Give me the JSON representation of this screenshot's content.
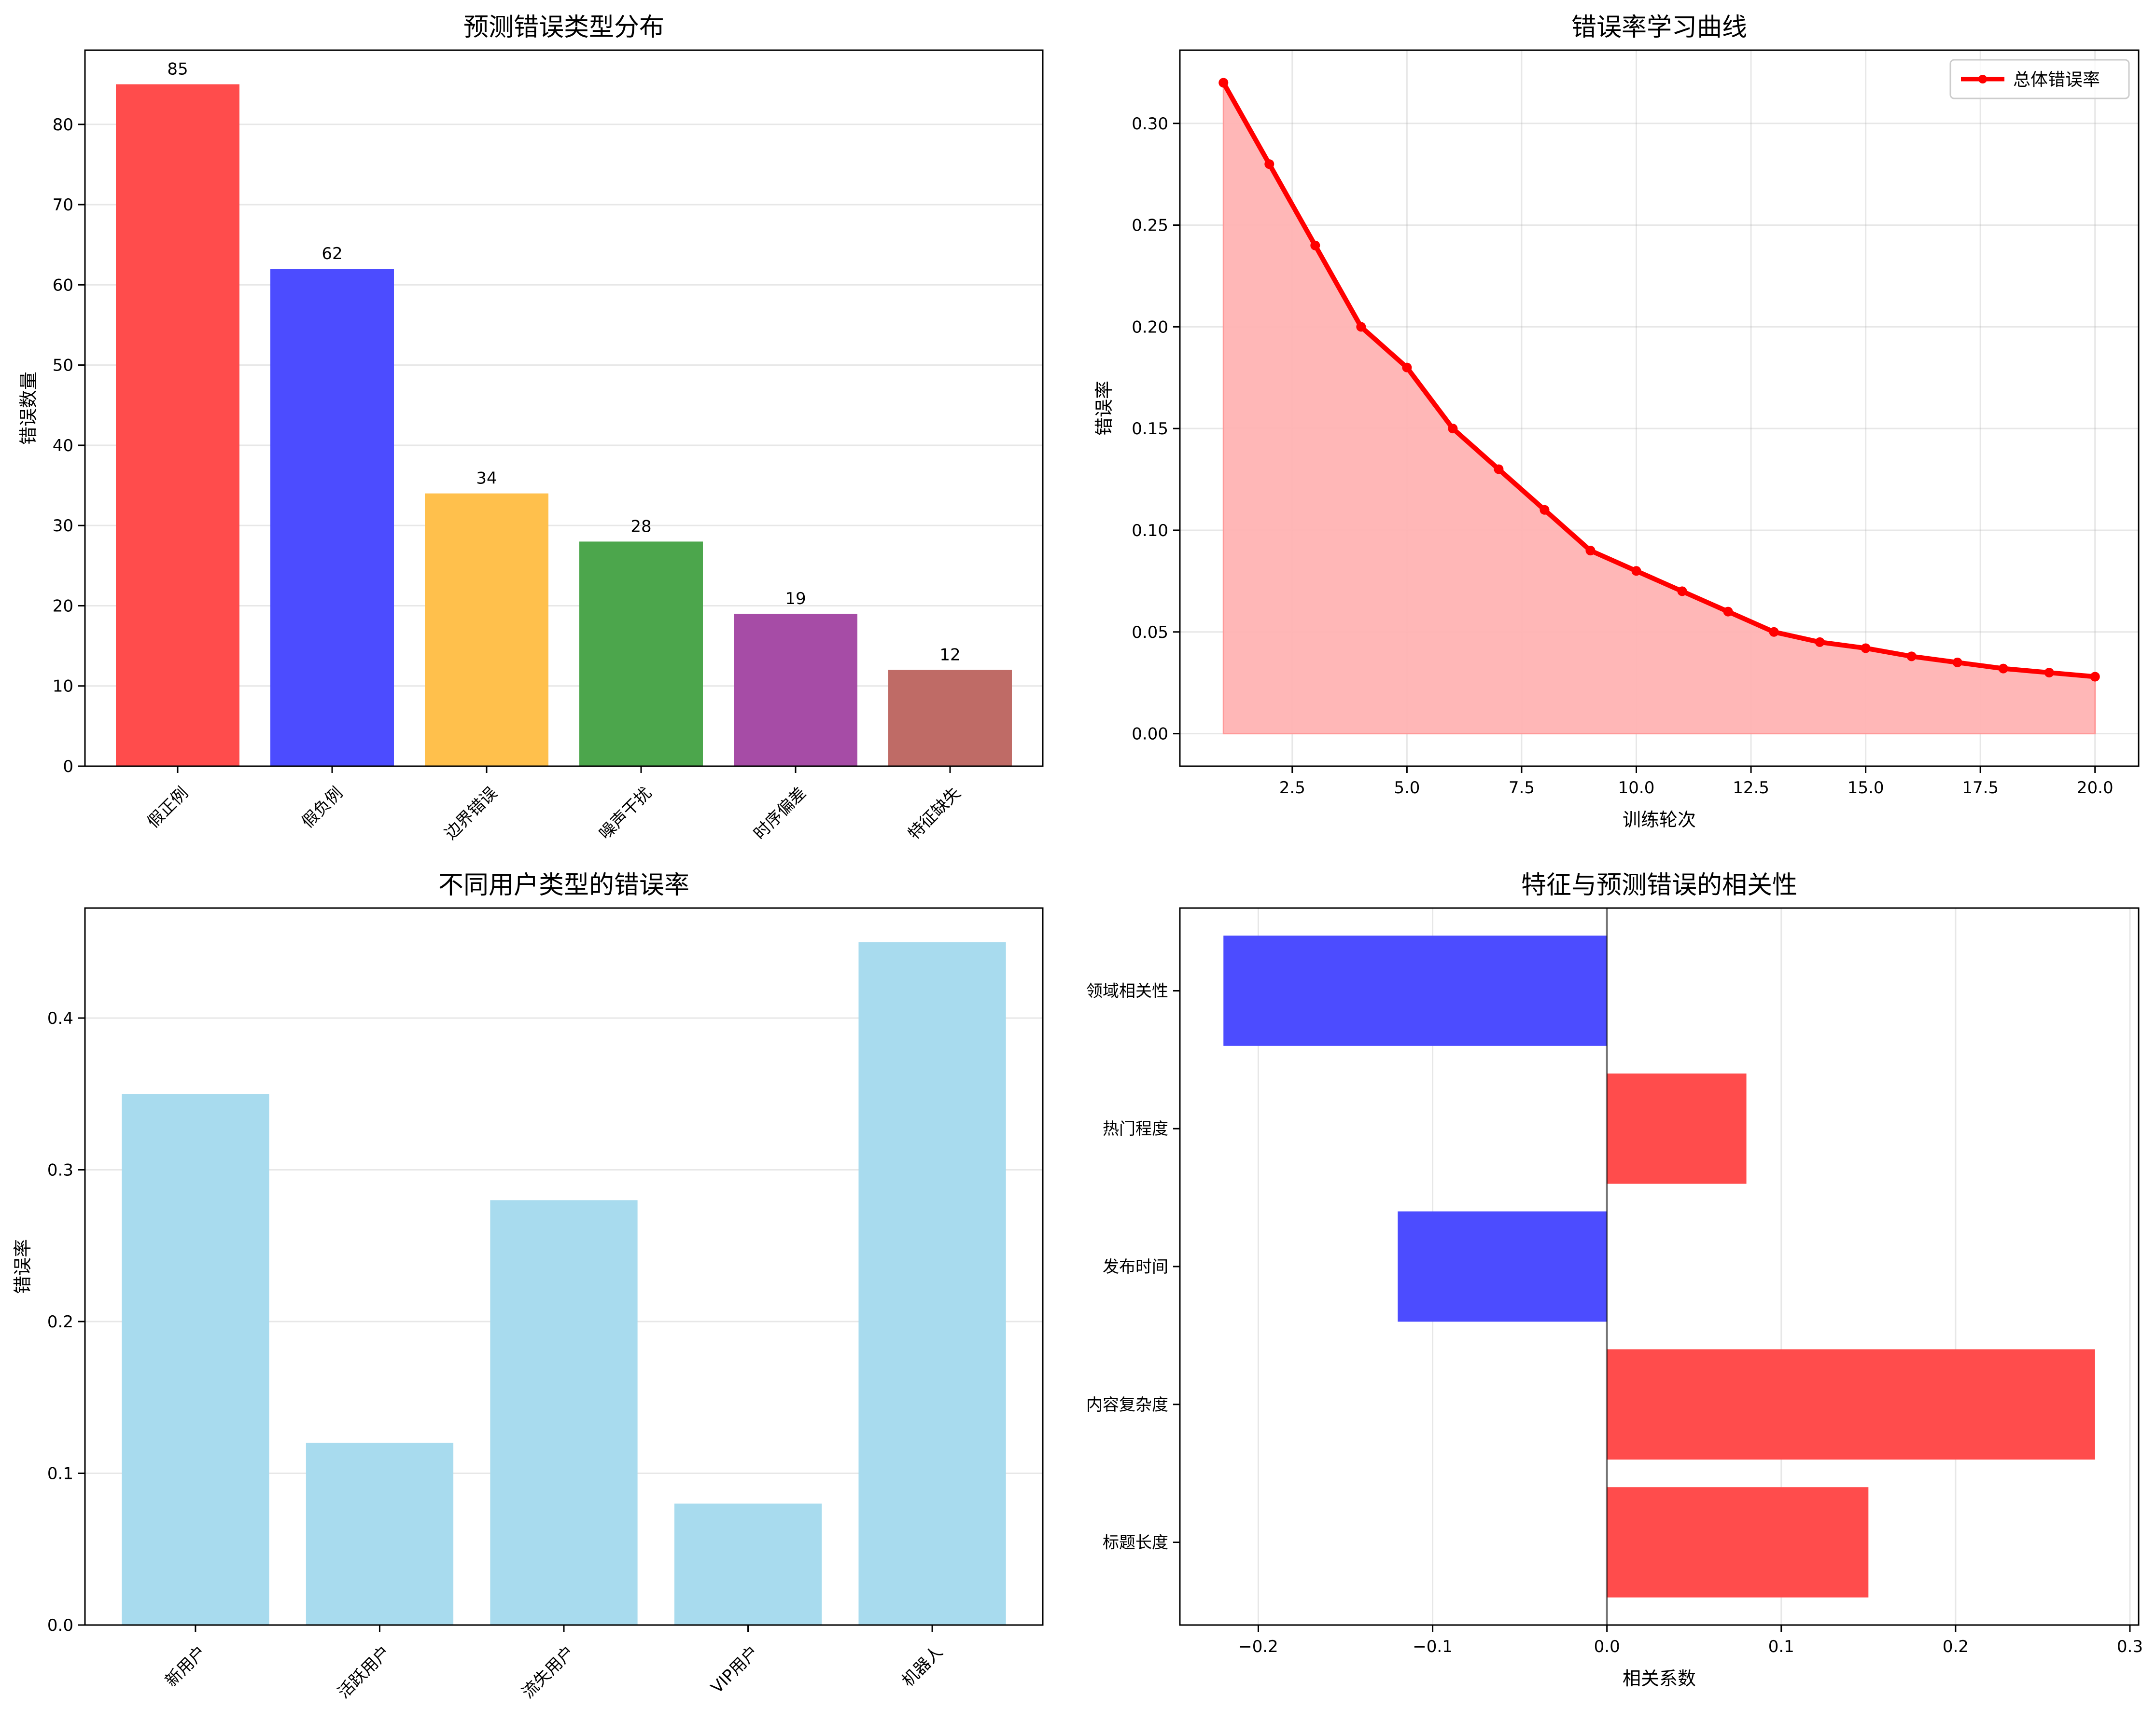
{
  "chart_data": [
    {
      "type": "bar",
      "title": "预测错误类型分布",
      "xlabel": "",
      "ylabel": "错误数量",
      "categories": [
        "假正例",
        "假负例",
        "边界错误",
        "噪声干扰",
        "时序偏差",
        "特征缺失"
      ],
      "values": [
        85,
        62,
        34,
        28,
        19,
        12
      ],
      "colors": [
        "#ff4c4c",
        "#4c4cff",
        "#ffc04c",
        "#4ca64c",
        "#a64ca6",
        "#bf6b66"
      ],
      "ylim": [
        0,
        89.25
      ],
      "yticks": [
        0,
        10,
        20,
        30,
        40,
        50,
        60,
        70,
        80
      ],
      "grid": "y",
      "data_labels": true
    },
    {
      "type": "line",
      "title": "错误率学习曲线",
      "xlabel": "训练轮次",
      "ylabel": "错误率",
      "x": [
        1,
        2,
        3,
        4,
        5,
        6,
        7,
        8,
        9,
        10,
        11,
        12,
        13,
        14,
        15,
        16,
        17,
        18,
        19,
        20
      ],
      "series": [
        {
          "name": "总体错误率",
          "values": [
            0.32,
            0.28,
            0.24,
            0.2,
            0.18,
            0.15,
            0.13,
            0.11,
            0.09,
            0.08,
            0.07,
            0.06,
            0.05,
            0.045,
            0.042,
            0.038,
            0.035,
            0.032,
            0.03,
            0.028
          ],
          "color": "#ff0000",
          "fill": "#ffb3b3"
        }
      ],
      "xlim": [
        0.05,
        20.95
      ],
      "ylim": [
        -0.016,
        0.336
      ],
      "xticks": [
        2.5,
        5.0,
        7.5,
        10.0,
        12.5,
        15.0,
        17.5,
        20.0
      ],
      "xtick_labels": [
        "2.5",
        "5.0",
        "7.5",
        "10.0",
        "12.5",
        "15.0",
        "17.5",
        "20.0"
      ],
      "yticks": [
        0.0,
        0.05,
        0.1,
        0.15,
        0.2,
        0.25,
        0.3
      ],
      "ytick_labels": [
        "0.00",
        "0.05",
        "0.10",
        "0.15",
        "0.20",
        "0.25",
        "0.30"
      ],
      "grid": "both",
      "legend": "top-right"
    },
    {
      "type": "bar",
      "title": "不同用户类型的错误率",
      "xlabel": "",
      "ylabel": "错误率",
      "categories": [
        "新用户",
        "活跃用户",
        "流失用户",
        "VIP用户",
        "机器人"
      ],
      "values": [
        0.35,
        0.12,
        0.28,
        0.08,
        0.45
      ],
      "colors": [
        "#a8dbee",
        "#a8dbee",
        "#a8dbee",
        "#a8dbee",
        "#a8dbee"
      ],
      "ylim": [
        0,
        0.4725
      ],
      "yticks": [
        0.0,
        0.1,
        0.2,
        0.3,
        0.4
      ],
      "ytick_labels": [
        "0.0",
        "0.1",
        "0.2",
        "0.3",
        "0.4"
      ],
      "grid": "y"
    },
    {
      "type": "bar",
      "orientation": "horizontal",
      "title": "特征与预测错误的相关性",
      "xlabel": "相关系数",
      "ylabel": "",
      "categories": [
        "标题长度",
        "内容复杂度",
        "发布时间",
        "热门程度",
        "领域相关性"
      ],
      "values": [
        0.15,
        0.28,
        -0.12,
        0.08,
        -0.22
      ],
      "colors": [
        "#ff4c4c",
        "#ff4c4c",
        "#4c4cff",
        "#ff4c4c",
        "#4c4cff"
      ],
      "xlim": [
        -0.245,
        0.305
      ],
      "xticks": [
        -0.2,
        -0.1,
        0.0,
        0.1,
        0.2,
        0.3
      ],
      "xtick_labels": [
        "−0.2",
        "−0.1",
        "0.0",
        "0.1",
        "0.2",
        "0.3"
      ],
      "grid": "x",
      "zero_line": true
    }
  ]
}
